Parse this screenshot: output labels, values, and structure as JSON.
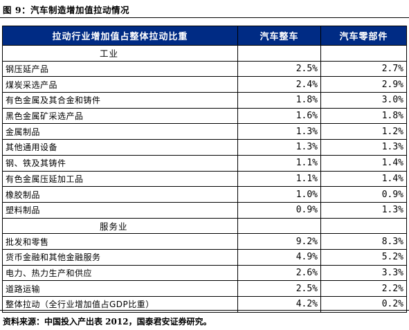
{
  "figure_title": "图 9：汽车制造增加值拉动情况",
  "table": {
    "headers": [
      "拉动行业增加值占整体拉动比重",
      "汽车整车",
      "汽车零部件"
    ],
    "sections": [
      {
        "name": "工业",
        "rows": [
          {
            "label": "钢压延产品",
            "vehicle": "2.5%",
            "parts": "2.7%"
          },
          {
            "label": "煤炭采选产品",
            "vehicle": "2.4%",
            "parts": "2.9%"
          },
          {
            "label": "有色金属及其合金和铸件",
            "vehicle": "1.8%",
            "parts": "3.0%"
          },
          {
            "label": "黑色金属矿采选产品",
            "vehicle": "1.6%",
            "parts": "1.8%"
          },
          {
            "label": "金属制品",
            "vehicle": "1.3%",
            "parts": "1.2%"
          },
          {
            "label": "其他通用设备",
            "vehicle": "1.3%",
            "parts": "1.3%"
          },
          {
            "label": "钢、铁及其铸件",
            "vehicle": "1.1%",
            "parts": "1.4%"
          },
          {
            "label": "有色金属压延加工品",
            "vehicle": "1.1%",
            "parts": "1.4%"
          },
          {
            "label": "橡胶制品",
            "vehicle": "1.0%",
            "parts": "0.9%"
          },
          {
            "label": "塑料制品",
            "vehicle": "0.9%",
            "parts": "1.3%"
          }
        ]
      },
      {
        "name": "服务业",
        "rows": [
          {
            "label": "批发和零售",
            "vehicle": "9.2%",
            "parts": "8.3%"
          },
          {
            "label": "货币金融和其他金融服务",
            "vehicle": "4.9%",
            "parts": "5.2%"
          },
          {
            "label": "电力、热力生产和供应",
            "vehicle": "2.6%",
            "parts": "3.3%"
          },
          {
            "label": "道路运输",
            "vehicle": "2.5%",
            "parts": "2.2%"
          }
        ]
      }
    ],
    "total": {
      "label": "整体拉动（全行业增加值占GDP比重）",
      "vehicle": "4.2%",
      "parts": "0.2%"
    }
  },
  "source": "资料来源：中国投入产出表 2012，国泰君安证券研究。",
  "colors": {
    "header_bg": "#002b84",
    "header_text": "#ffffff"
  }
}
